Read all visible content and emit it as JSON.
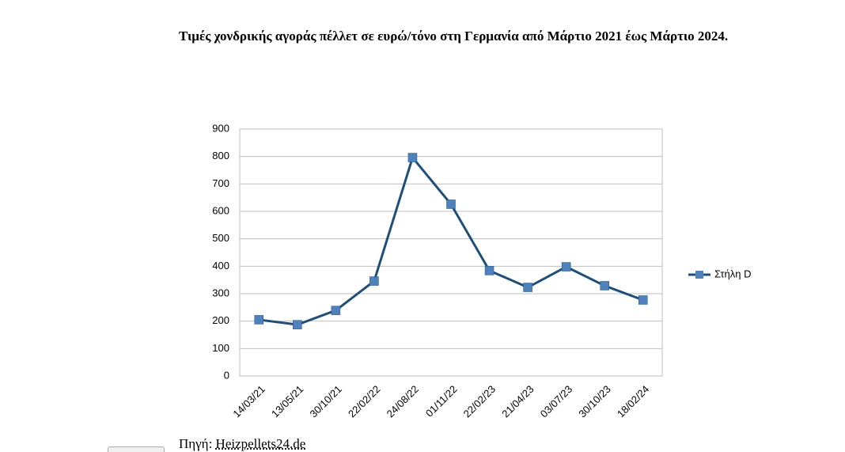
{
  "chart_data": {
    "type": "line",
    "title": "Τιμές χονδρικής αγοράς πέλλετ  σε ευρώ/τόνο στη Γερμανία από Μάρτιο 2021 έως Μάρτιο 2024.",
    "categories": [
      "14/03/21",
      "13/05/21",
      "30/10/21",
      "22/02/22",
      "24/08/22",
      "01/11/22",
      "22/02/23",
      "21/04/23",
      "03/07/23",
      "30/10/23",
      "18/02/24"
    ],
    "series": [
      {
        "name": "Στήλη D",
        "color": "#1f4e79",
        "marker_color": "#4f81bd",
        "values": [
          205,
          187,
          239,
          346,
          796,
          626,
          384,
          323,
          398,
          329,
          277
        ]
      }
    ],
    "ylim": [
      0,
      900
    ],
    "yticks": [
      0,
      100,
      200,
      300,
      400,
      500,
      600,
      700,
      800,
      900
    ],
    "grid": true,
    "legend": "right"
  },
  "source": {
    "label": "Πηγή:",
    "link": "Heizpellets24.de"
  }
}
